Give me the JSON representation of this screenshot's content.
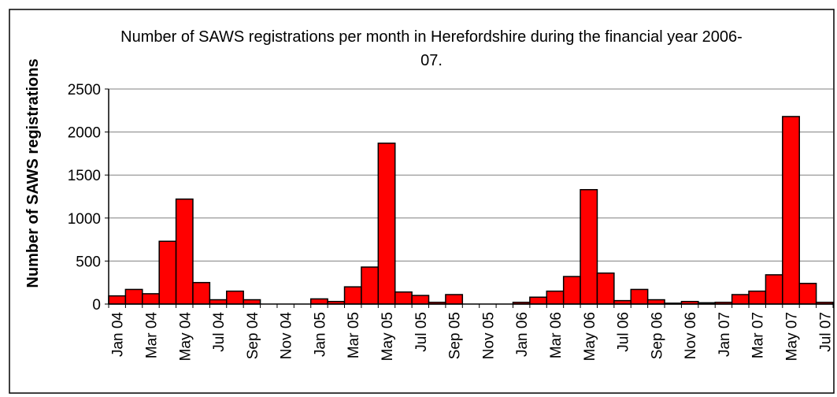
{
  "chart_data": {
    "type": "bar",
    "title": "Number of SAWS registrations per month in Herefordshire during the financial year 2006-07.",
    "y_label": "Number of SAWS registrations",
    "categories": [
      "Jan 04",
      null,
      "Mar 04",
      null,
      "May 04",
      null,
      "Jul 04",
      null,
      "Sep 04",
      null,
      "Nov 04",
      null,
      "Jan 05",
      null,
      "Mar 05",
      null,
      "May 05",
      null,
      "Jul 05",
      null,
      "Sep 05",
      null,
      "Nov 05",
      null,
      "Jan 06",
      null,
      "Mar 06",
      null,
      "May 06",
      null,
      "Jul 06",
      null,
      "Sep 06",
      null,
      "Nov 06",
      null,
      "Jan 07",
      null,
      "Mar 07",
      null,
      "May 07",
      null,
      "Jul 07"
    ],
    "values": [
      95,
      170,
      120,
      730,
      1220,
      250,
      50,
      150,
      50,
      0,
      0,
      0,
      60,
      30,
      200,
      430,
      1870,
      140,
      100,
      20,
      110,
      0,
      0,
      0,
      20,
      80,
      150,
      320,
      1330,
      360,
      40,
      170,
      50,
      10,
      30,
      15,
      20,
      110,
      150,
      340,
      2180,
      240,
      20
    ],
    "color": "#ff0000",
    "ylim": [
      0,
      2500
    ],
    "yticks": [
      0,
      500,
      1000,
      1500,
      2000,
      2500
    ],
    "grid": true
  }
}
